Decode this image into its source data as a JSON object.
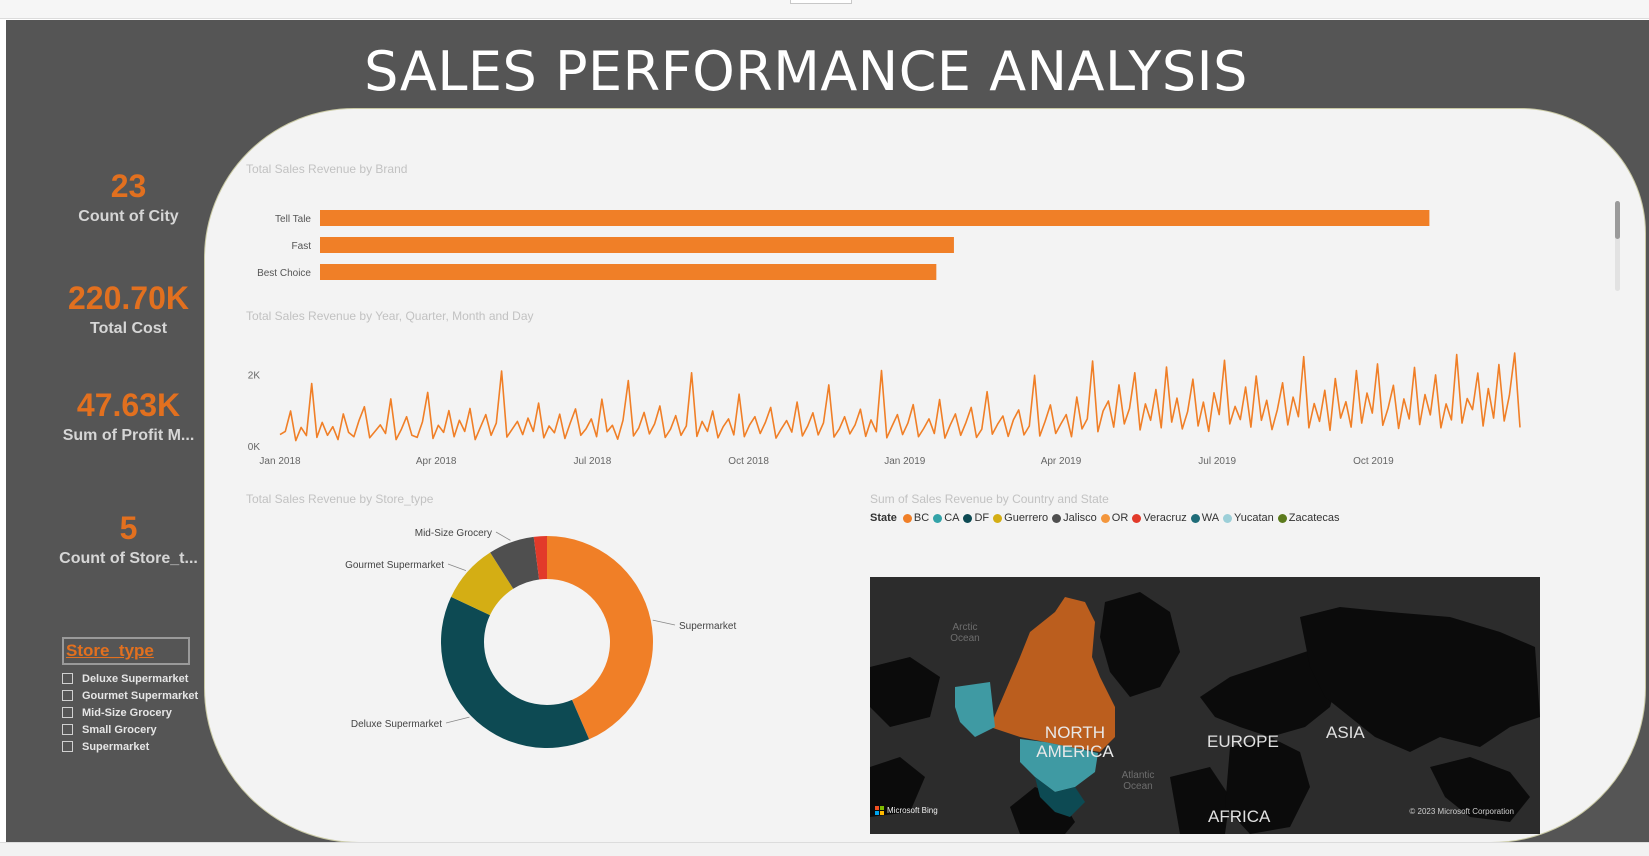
{
  "title": "SALES PERFORMANCE ANALYSIS",
  "kpis": [
    {
      "value": "23",
      "label": "Count of City"
    },
    {
      "value": "220.70K",
      "label": "Total Cost"
    },
    {
      "value": "47.63K",
      "label": "Sum of Profit M..."
    },
    {
      "value": "5",
      "label": "Count of Store_t..."
    }
  ],
  "slicer": {
    "title": "Store_type",
    "options": [
      "Deluxe Supermarket",
      "Gourmet Supermarket",
      "Mid-Size Grocery",
      "Small Grocery",
      "Supermarket"
    ]
  },
  "colors": {
    "accent": "#e2701f",
    "background": "#555555",
    "panel": "#f3f3f3",
    "teal_dark": "#0d4a53"
  },
  "chart_data": [
    {
      "type": "bar",
      "title": "Total Sales Revenue by Brand",
      "categories": [
        "Tell Tale",
        "Fast",
        "Best Choice"
      ],
      "values": [
        157500,
        90000,
        87500
      ],
      "xlim": [
        0,
        160000
      ],
      "ticks": [
        "0K",
        "50K",
        "100K",
        "150K"
      ],
      "tick_values": [
        0,
        50000,
        100000,
        150000
      ],
      "color": "#f07f27"
    },
    {
      "type": "line",
      "title": "Total Sales Revenue by Year, Quarter, Month and Day",
      "x_ticks": [
        "Jan 2018",
        "Apr 2018",
        "Jul 2018",
        "Oct 2018",
        "Jan 2019",
        "Apr 2019",
        "Jul 2019",
        "Oct 2019"
      ],
      "y_ticks": [
        "0K",
        "2K"
      ],
      "ylim": [
        0,
        2800
      ],
      "color": "#f07f27",
      "series": [
        {
          "values": [
            320,
            410,
            980,
            150,
            520,
            290,
            1750,
            240,
            660,
            300,
            540,
            180,
            900,
            380,
            260,
            720,
            1100,
            230,
            410,
            590,
            350,
            1320,
            180,
            470,
            820,
            300,
            240,
            680,
            1500,
            210,
            580,
            380,
            990,
            260,
            720,
            410,
            1050,
            180,
            530,
            880,
            300,
            640,
            2100,
            250,
            470,
            690,
            320,
            780,
            410,
            1200,
            230,
            560,
            370,
            890,
            210,
            640,
            1040,
            300,
            480,
            760,
            260,
            1310,
            400,
            580,
            190,
            720,
            1830,
            280,
            510,
            940,
            340,
            620,
            1120,
            240,
            470,
            850,
            300,
            560,
            2050,
            270,
            690,
            410,
            980,
            230,
            540,
            760,
            310,
            1450,
            260,
            590,
            820,
            350,
            660,
            1080,
            220,
            480,
            710,
            390,
            1230,
            280,
            560,
            930,
            310,
            650,
            1710,
            250,
            480,
            820,
            340,
            590,
            1030,
            270,
            730,
            400,
            2110,
            230,
            560,
            880,
            320,
            640,
            1160,
            260,
            490,
            760,
            350,
            1300,
            220,
            580,
            900,
            300,
            660,
            1080,
            240,
            470,
            1520,
            330,
            610,
            840,
            270,
            730,
            1010,
            310,
            560,
            1980,
            280,
            690,
            1150,
            350,
            620,
            880,
            260,
            1370,
            480,
            760,
            2380,
            400,
            980,
            1260,
            530,
            1710,
            620,
            1050,
            2050,
            450,
            1180,
            720,
            1580,
            510,
            2210,
            670,
            1340,
            480,
            960,
            1870,
            560,
            1230,
            410,
            1490,
            880,
            2400,
            620,
            1110,
            740,
            1650,
            530,
            1960,
            720,
            1280,
            460,
            1010,
            1770,
            590,
            1370,
            820,
            2500,
            510,
            1190,
            690,
            1560,
            440,
            1890,
            780,
            1240,
            530,
            2110,
            640,
            1480,
            920,
            2300,
            580,
            1060,
            1700,
            490,
            1320,
            760,
            2200,
            600,
            1440,
            870,
            1990,
            510,
            1180,
            730,
            2560,
            640,
            1330,
            1020,
            2040,
            560,
            1610,
            780,
            2280,
            700,
            1420,
            2600,
            520
          ]
        }
      ]
    },
    {
      "type": "pie",
      "title": "Total Sales Revenue by Store_type",
      "categories": [
        "Supermarket",
        "Deluxe Supermarket",
        "Gourmet Supermarket",
        "Mid-Size Grocery",
        "Small Grocery"
      ],
      "values": [
        43.5,
        38.5,
        9.0,
        7.0,
        2.0
      ],
      "colors": [
        "#f07f27",
        "#0d4a53",
        "#d4ae14",
        "#4f4f4f",
        "#e23a2a"
      ],
      "labels_shown": [
        "Supermarket",
        "Deluxe Supermarket",
        "Gourmet Supermarket",
        "Mid-Size Grocery"
      ]
    }
  ],
  "map": {
    "title": "Sum of Sales Revenue by Country and State",
    "legend_title": "State",
    "legend": [
      {
        "label": "BC",
        "color": "#f07f27"
      },
      {
        "label": "CA",
        "color": "#33a3a8"
      },
      {
        "label": "DF",
        "color": "#0d4a53"
      },
      {
        "label": "Guerrero",
        "color": "#d4ae14"
      },
      {
        "label": "Jalisco",
        "color": "#4f4f4f"
      },
      {
        "label": "OR",
        "color": "#f3963c"
      },
      {
        "label": "Veracruz",
        "color": "#e23a2a"
      },
      {
        "label": "WA",
        "color": "#1f6c78"
      },
      {
        "label": "Yucatan",
        "color": "#9ccfd8"
      },
      {
        "label": "Zacatecas",
        "color": "#5b7a1c"
      }
    ],
    "labels": {
      "arctic": "Arctic Ocean",
      "north_america": "NORTH AMERICA",
      "europe": "EUROPE",
      "asia": "ASIA",
      "atlantic": "Atlantic Ocean",
      "africa": "AFRICA"
    },
    "attribution": "Microsoft Bing",
    "copyright": "© 2023 Microsoft Corporation"
  }
}
